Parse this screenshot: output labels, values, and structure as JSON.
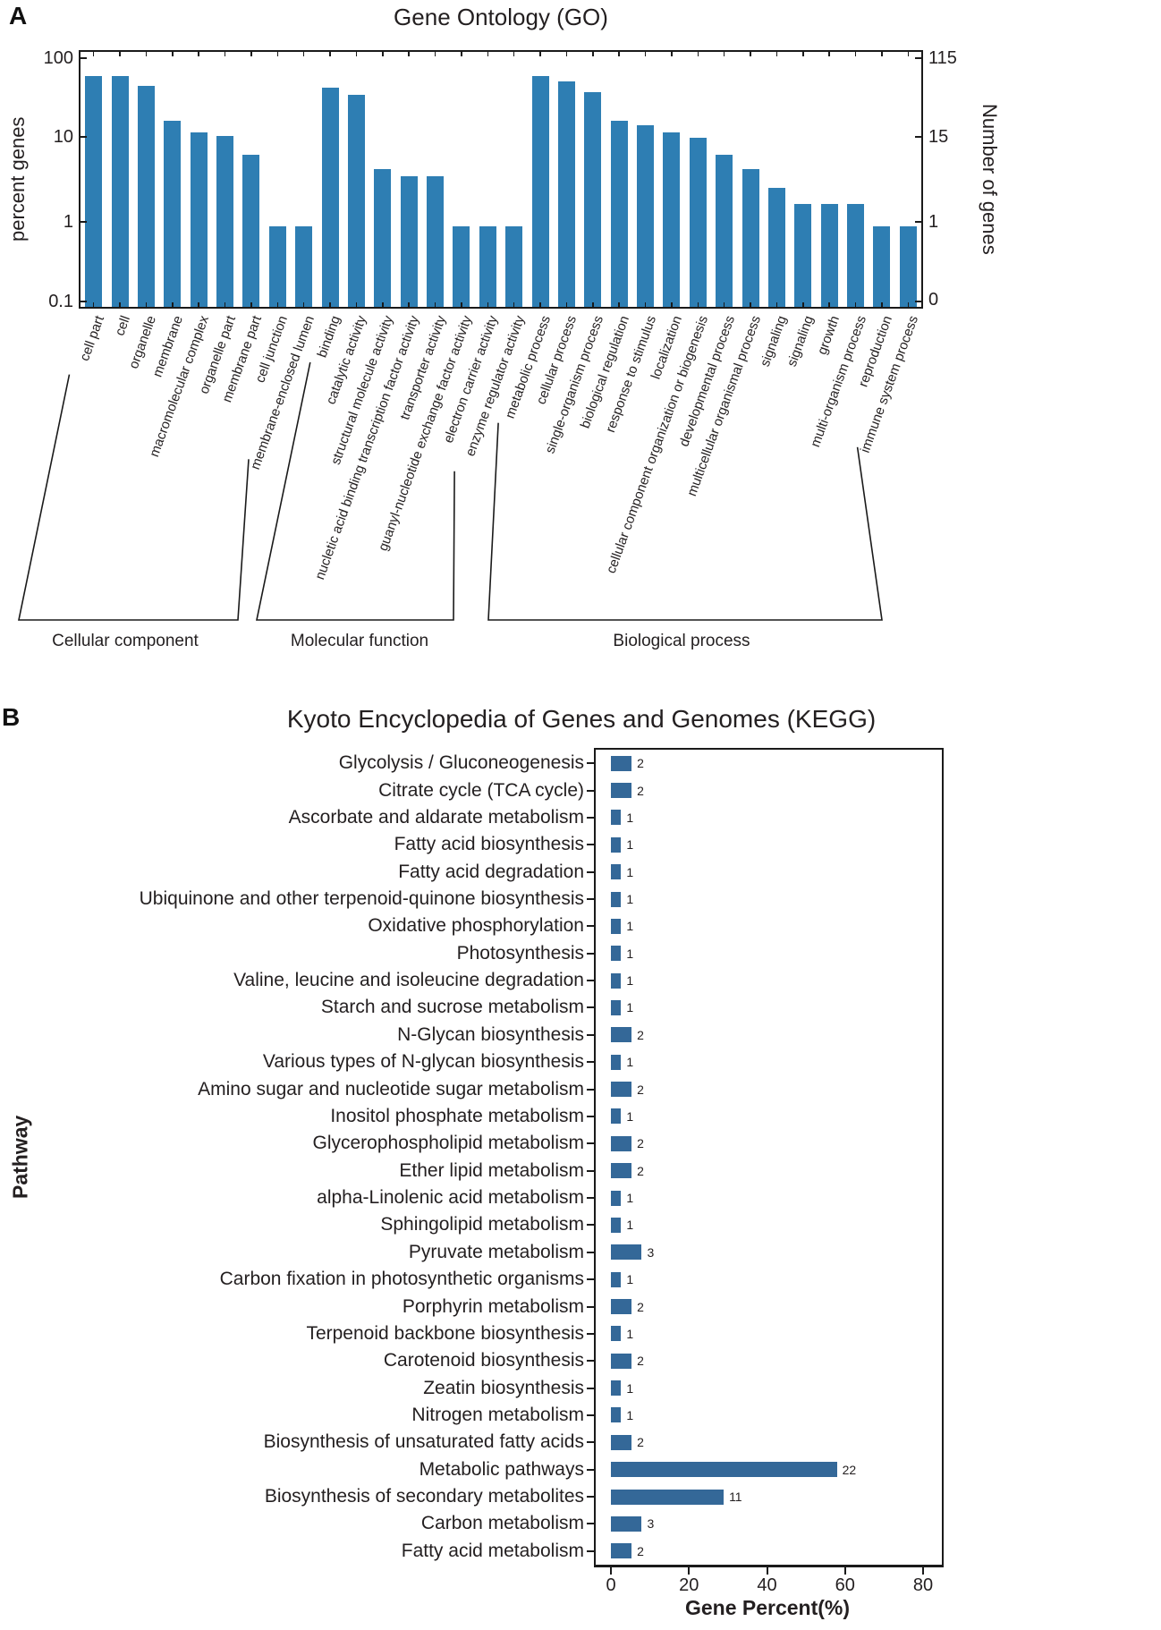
{
  "figure": {
    "panel_a_label": "A",
    "panel_b_label": "B"
  },
  "chart_data": [
    {
      "type": "bar",
      "title": "Gene Ontology (GO)",
      "ylabel_left": "percent genes",
      "ylabel_right": "Number of genes",
      "y_scale": "log",
      "ylim": [
        0.1,
        100
      ],
      "y_ticks_left": [
        "100",
        "10",
        "1",
        "0.1"
      ],
      "y_ticks_right": [
        "115",
        "15",
        "1",
        "0"
      ],
      "bar_color": "#2e7eb3",
      "grid": false,
      "groups": [
        {
          "name": "Cellular component",
          "categories": [
            "cell part",
            "cell",
            "organelle",
            "membrane",
            "macromolecular complex",
            "organelle part",
            "membrane part",
            "cell junction",
            "membrane-enclosed lumen"
          ],
          "values": [
            60,
            60,
            45,
            17,
            12,
            11,
            6.5,
            0.85,
            0.85
          ]
        },
        {
          "name": "Molecular function",
          "categories": [
            "binding",
            "catalytic activity",
            "structural molecule activity",
            "nucletic acid binding transcription factor activity",
            "transporter activity",
            "guanyl-nucleotide exchange factor activity",
            "electron carrier activity",
            "enzyme regulator activity"
          ],
          "values": [
            43,
            35,
            4.3,
            3.5,
            3.5,
            0.85,
            0.85,
            0.85
          ]
        },
        {
          "name": "Biological process",
          "categories": [
            "metabolic process",
            "cellular process",
            "single-organism process",
            "biological regulation",
            "response to stimulus",
            "localization",
            "cellular component organization or biogenesis",
            "developmental process",
            "multicellular organismal process",
            "signaling",
            "signaling",
            "growth",
            "multi-organism process",
            "reproduction",
            "immune system process"
          ],
          "values": [
            60,
            52,
            38,
            17,
            15,
            12,
            10.5,
            6.5,
            4.3,
            2.5,
            1.6,
            1.6,
            1.6,
            0.85,
            0.85
          ]
        }
      ]
    },
    {
      "type": "bar_horizontal",
      "title": "Kyoto Encyclopedia of Genes and Genomes (KEGG)",
      "xlabel": "Gene Percent(%)",
      "ylabel": "Pathway",
      "x_ticks": [
        "0",
        "20",
        "40",
        "60",
        "80"
      ],
      "xlim": [
        0,
        85
      ],
      "bar_color": "#346898",
      "grid": false,
      "rows": [
        {
          "label": "Glycolysis / Gluconeogenesis",
          "count": "2",
          "percent": 5.3
        },
        {
          "label": "Citrate cycle (TCA cycle)",
          "count": "2",
          "percent": 5.3
        },
        {
          "label": "Ascorbate and aldarate metabolism",
          "count": "1",
          "percent": 2.6
        },
        {
          "label": "Fatty acid biosynthesis",
          "count": "1",
          "percent": 2.6
        },
        {
          "label": "Fatty acid degradation",
          "count": "1",
          "percent": 2.6
        },
        {
          "label": "Ubiquinone and other terpenoid-quinone biosynthesis",
          "count": "1",
          "percent": 2.6
        },
        {
          "label": "Oxidative phosphorylation",
          "count": "1",
          "percent": 2.6
        },
        {
          "label": "Photosynthesis",
          "count": "1",
          "percent": 2.6
        },
        {
          "label": "Valine, leucine and isoleucine degradation",
          "count": "1",
          "percent": 2.6
        },
        {
          "label": "Starch and sucrose metabolism",
          "count": "1",
          "percent": 2.6
        },
        {
          "label": "N-Glycan biosynthesis",
          "count": "2",
          "percent": 5.3
        },
        {
          "label": "Various types of N-glycan biosynthesis",
          "count": "1",
          "percent": 2.6
        },
        {
          "label": "Amino sugar and nucleotide sugar metabolism",
          "count": "2",
          "percent": 5.3
        },
        {
          "label": "Inositol phosphate metabolism",
          "count": "1",
          "percent": 2.6
        },
        {
          "label": "Glycerophospholipid metabolism",
          "count": "2",
          "percent": 5.3
        },
        {
          "label": "Ether lipid metabolism",
          "count": "2",
          "percent": 5.3
        },
        {
          "label": "alpha-Linolenic acid metabolism",
          "count": "1",
          "percent": 2.6
        },
        {
          "label": "Sphingolipid metabolism",
          "count": "1",
          "percent": 2.6
        },
        {
          "label": "Pyruvate metabolism",
          "count": "3",
          "percent": 7.9
        },
        {
          "label": "Carbon fixation in photosynthetic organisms",
          "count": "1",
          "percent": 2.6
        },
        {
          "label": "Porphyrin metabolism",
          "count": "2",
          "percent": 5.3
        },
        {
          "label": "Terpenoid backbone biosynthesis",
          "count": "1",
          "percent": 2.6
        },
        {
          "label": "Carotenoid biosynthesis",
          "count": "2",
          "percent": 5.3
        },
        {
          "label": "Zeatin biosynthesis",
          "count": "1",
          "percent": 2.6
        },
        {
          "label": "Nitrogen metabolism",
          "count": "1",
          "percent": 2.6
        },
        {
          "label": "Biosynthesis of unsaturated fatty acids",
          "count": "2",
          "percent": 5.3
        },
        {
          "label": "Metabolic pathways",
          "count": "22",
          "percent": 57.9
        },
        {
          "label": "Biosynthesis of secondary metabolites",
          "count": "11",
          "percent": 28.9
        },
        {
          "label": "Carbon metabolism",
          "count": "3",
          "percent": 7.9
        },
        {
          "label": "Fatty acid metabolism",
          "count": "2",
          "percent": 5.3
        }
      ]
    }
  ]
}
